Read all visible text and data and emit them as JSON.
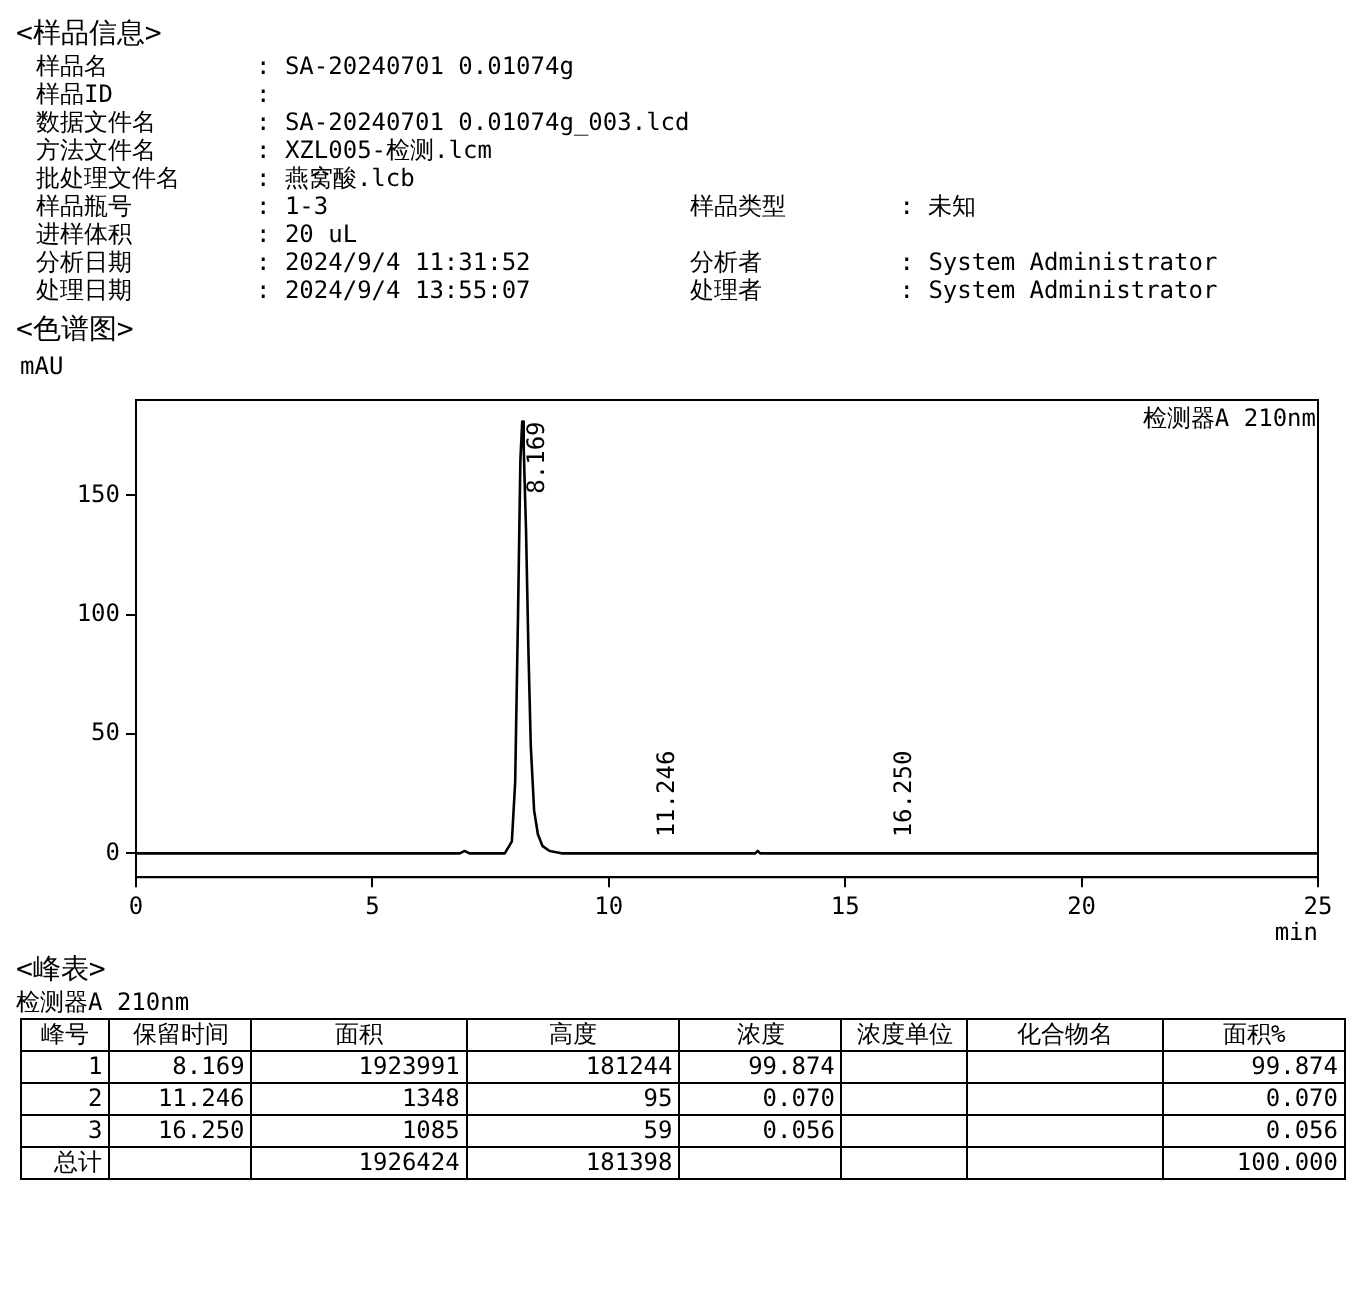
{
  "chart_data": [
    {
      "type": "other",
      "title": "<样品信息>",
      "annotations": [
        "样品名\t: SA-20240701 0.01074g",
        "样品ID\t:",
        "数据文件名\t: SA-20240701 0.01074g_003.lcd",
        "方法文件名\t: XZL005-检测.lcm",
        "批处理文件名\t: 燕窝酸.lcb",
        "样品瓶号\t: 1-3\t样品类型\t: 未知",
        "进样体积\t: 20 uL",
        "分析日期\t: 2024/9/4 11:31:52\t分析者\t: System Administrator",
        "处理日期\t: 2024/9/4 13:55:07\t处理者\t: System Administrator"
      ]
    },
    {
      "type": "line",
      "title": "<色谱图>",
      "ylabel": "mAU",
      "xlabel": "min",
      "xlim": [
        0,
        25
      ],
      "xticks": [
        0,
        5,
        10,
        15,
        20,
        25
      ],
      "ylim": [
        -10,
        190
      ],
      "yticks": [
        0,
        50,
        100,
        150
      ],
      "grid": false,
      "legend": false,
      "marker": "none",
      "x": [
        0,
        3,
        6.7,
        6.85,
        6.95,
        7.05,
        7.2,
        7.8,
        7.95,
        8.02,
        8.08,
        8.13,
        8.169,
        8.2,
        8.25,
        8.3,
        8.35,
        8.42,
        8.5,
        8.6,
        8.75,
        9,
        10,
        11.1,
        11.246,
        11.4,
        13,
        13.1,
        13.15,
        13.2,
        13.3,
        16.1,
        16.25,
        16.4,
        20,
        25
      ],
      "series": [
        {
          "color": "#000000",
          "values": [
            0,
            0,
            0,
            0,
            1,
            0,
            0,
            0,
            5,
            30,
            100,
            165,
            181,
            170,
            135,
            85,
            45,
            18,
            8,
            3,
            1,
            0,
            0,
            0,
            0,
            0,
            0,
            0,
            1,
            0,
            0,
            0,
            0,
            0,
            0,
            0
          ]
        }
      ],
      "annotations": [
        "检测器A 210nm",
        {
          "text": "8.169",
          "x": 8.169,
          "y": 181
        },
        {
          "text": "11.246",
          "x": 11.246,
          "y": 0
        },
        {
          "text": "16.250",
          "x": 16.25,
          "y": 0
        }
      ]
    },
    {
      "type": "other",
      "title": "<峰表>",
      "subtitle": "检测器A 210nm",
      "annotations": [
        "峰号\t保留时间\t面积\t高度\t浓度\t浓度单位\t化合物名\t面积%",
        "1\t8.169\t1923991\t181244\t99.874\t\t\t99.874",
        "2\t11.246\t1348\t95\t0.070\t\t\t0.070",
        "3\t16.250\t1085\t59\t0.056\t\t\t0.056",
        "总计\t\t1926424\t181398\t\t\t\t100.000"
      ]
    }
  ]
}
